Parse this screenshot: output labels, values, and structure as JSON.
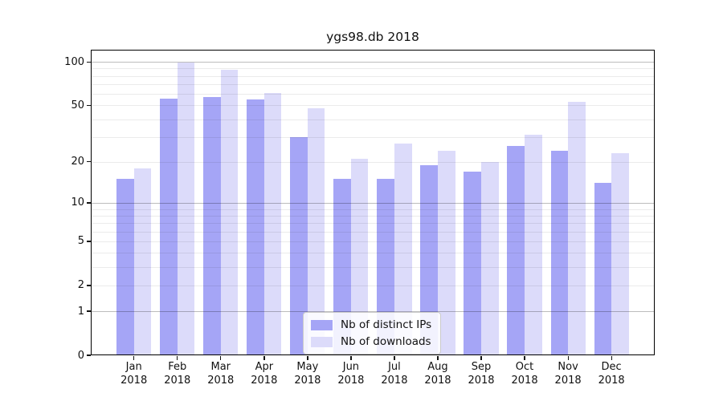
{
  "title": "ygs98.db 2018",
  "chart_data": {
    "type": "bar",
    "title": "ygs98.db 2018",
    "categories": [
      {
        "month": "Jan",
        "year": "2018"
      },
      {
        "month": "Feb",
        "year": "2018"
      },
      {
        "month": "Mar",
        "year": "2018"
      },
      {
        "month": "Apr",
        "year": "2018"
      },
      {
        "month": "May",
        "year": "2018"
      },
      {
        "month": "Jun",
        "year": "2018"
      },
      {
        "month": "Jul",
        "year": "2018"
      },
      {
        "month": "Aug",
        "year": "2018"
      },
      {
        "month": "Sep",
        "year": "2018"
      },
      {
        "month": "Oct",
        "year": "2018"
      },
      {
        "month": "Nov",
        "year": "2018"
      },
      {
        "month": "Dec",
        "year": "2018"
      }
    ],
    "series": [
      {
        "name": "Nb of distinct IPs",
        "color": "#a5a5f6",
        "values": [
          15,
          56,
          57,
          55,
          30,
          15,
          15,
          19,
          17,
          26,
          24,
          14
        ]
      },
      {
        "name": "Nb of downloads",
        "color": "#dcdbfa",
        "values": [
          18,
          99,
          88,
          61,
          48,
          21,
          27,
          24,
          20,
          31,
          53,
          23
        ]
      }
    ],
    "yscale": "log1p",
    "yticks": [
      100,
      50,
      20,
      10,
      5,
      2,
      1,
      0
    ],
    "ylim": [
      0,
      121
    ],
    "grid": "both",
    "gridline_values_minor": [
      2,
      3,
      4,
      5,
      6,
      7,
      8,
      9,
      20,
      30,
      40,
      50,
      60,
      70,
      80,
      90
    ],
    "gridline_values_major": [
      1,
      10,
      100
    ],
    "legend_position": "lower center"
  },
  "colors": {
    "background": "#ffffff",
    "axis": "#000000",
    "grid_major": "rgba(0,0,0,0.26)",
    "grid_minor": "rgba(0,0,0,0.08)"
  }
}
